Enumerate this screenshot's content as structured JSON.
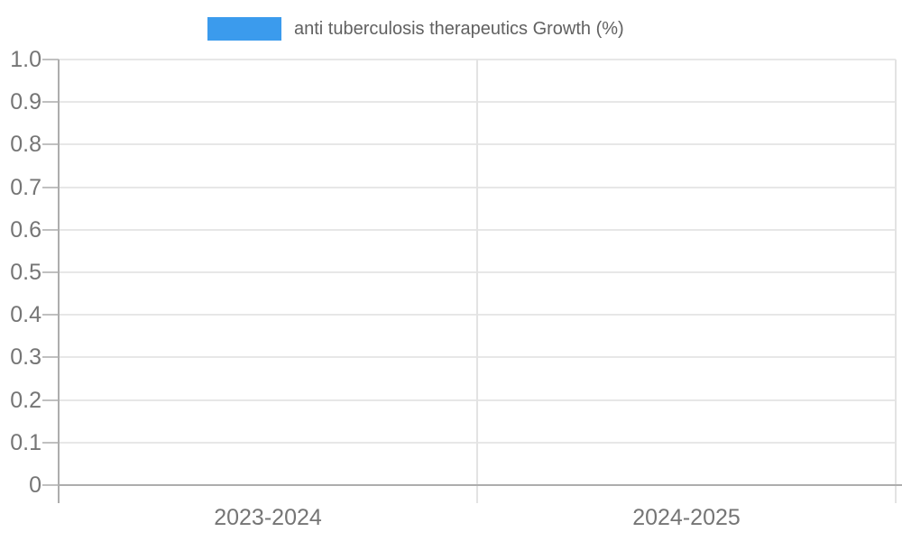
{
  "legend": {
    "swatch_color": "#3B9BED",
    "label": "anti tuberculosis therapeutics Growth (%)"
  },
  "chart_data": {
    "type": "bar",
    "title": "anti tuberculosis therapeutics Growth (%)",
    "categories": [
      "2023-2024",
      "2024-2025"
    ],
    "series": [
      {
        "name": "anti tuberculosis therapeutics Growth (%)",
        "values": [
          null,
          null
        ]
      }
    ],
    "xlabel": "",
    "ylabel": "",
    "ylim": [
      0,
      1
    ],
    "ytick_labels": [
      "1.0",
      "0.9",
      "0.8",
      "0.7",
      "0.6",
      "0.5",
      "0.4",
      "0.3",
      "0.2",
      "0.1",
      "0"
    ],
    "grid": "horizontal gridlines at every 0.1; vertical gridlines at category boundaries",
    "legend_position": "top-center",
    "note": "no bars rendered (empty / zero-value data)"
  },
  "colors": {
    "series_blue": "#3B9BED",
    "gridline": "#e7e7e7",
    "axis": "#adadad",
    "tick": "#c0c0c0",
    "axis_label_text": "#757575",
    "legend_text": "#616161"
  }
}
